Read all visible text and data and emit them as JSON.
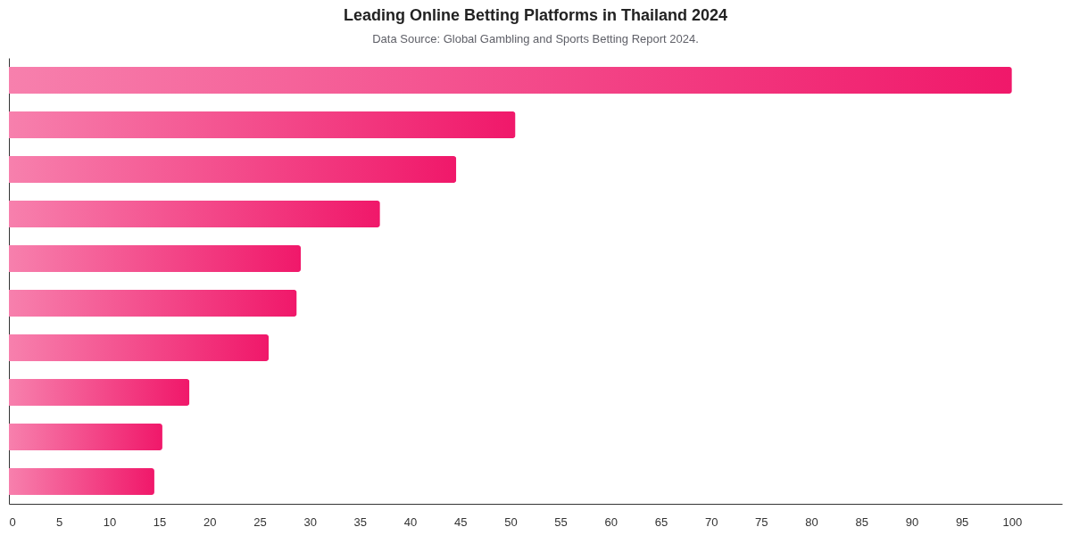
{
  "chart_data": {
    "type": "bar",
    "orientation": "horizontal",
    "title": "Leading Online Betting Platforms in Thailand 2024",
    "subtitle": "Data Source: Global Gambling and Sports Betting Report 2024.",
    "categories": [
      null,
      null,
      null,
      null,
      null,
      null,
      null,
      null,
      null,
      null
    ],
    "values": [
      100,
      50.5,
      44.6,
      37.0,
      29.1,
      28.7,
      25.9,
      18.0,
      15.3,
      14.5
    ],
    "color": "#f0186a",
    "xlim": [
      0,
      105
    ],
    "xticks": [
      0,
      5,
      10,
      15,
      20,
      25,
      30,
      35,
      40,
      45,
      50,
      55,
      60,
      65,
      70,
      75,
      80,
      85,
      90,
      95,
      100
    ]
  }
}
